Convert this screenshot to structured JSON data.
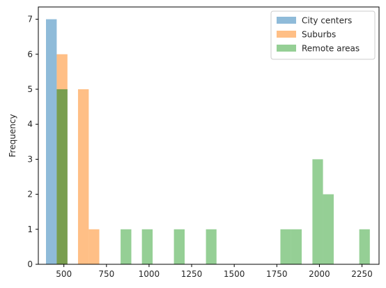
{
  "chart_data": {
    "type": "bar",
    "title": "",
    "xlabel": "",
    "ylabel": "Frequency",
    "xlim": [
      350,
      2350
    ],
    "ylim": [
      0,
      7.35
    ],
    "xticks": [
      500,
      750,
      1000,
      1250,
      1500,
      1750,
      2000,
      2250
    ],
    "yticks": [
      0,
      1,
      2,
      3,
      4,
      5,
      6,
      7
    ],
    "grid": false,
    "legend_position": "top-right",
    "series": [
      {
        "name": "City centers",
        "color": "#1f77b4",
        "alpha": 0.5,
        "bins": [
          {
            "x0": 395,
            "x1": 458,
            "count": 7
          },
          {
            "x0": 458,
            "x1": 521,
            "count": 5
          }
        ]
      },
      {
        "name": "Suburbs",
        "color": "#ff7f0e",
        "alpha": 0.5,
        "bins": [
          {
            "x0": 458,
            "x1": 521,
            "count": 6
          },
          {
            "x0": 583,
            "x1": 646,
            "count": 5
          },
          {
            "x0": 646,
            "x1": 708,
            "count": 1
          }
        ]
      },
      {
        "name": "Remote areas",
        "color": "#2ca02c",
        "alpha": 0.5,
        "bins": [
          {
            "x0": 458,
            "x1": 521,
            "count": 5
          },
          {
            "x0": 833,
            "x1": 896,
            "count": 1
          },
          {
            "x0": 958,
            "x1": 1021,
            "count": 1
          },
          {
            "x0": 1146,
            "x1": 1209,
            "count": 1
          },
          {
            "x0": 1334,
            "x1": 1396,
            "count": 1
          },
          {
            "x0": 1771,
            "x1": 1834,
            "count": 1
          },
          {
            "x0": 1834,
            "x1": 1896,
            "count": 1
          },
          {
            "x0": 1959,
            "x1": 2021,
            "count": 3
          },
          {
            "x0": 2021,
            "x1": 2084,
            "count": 2
          },
          {
            "x0": 2234,
            "x1": 2296,
            "count": 1
          }
        ]
      }
    ]
  }
}
